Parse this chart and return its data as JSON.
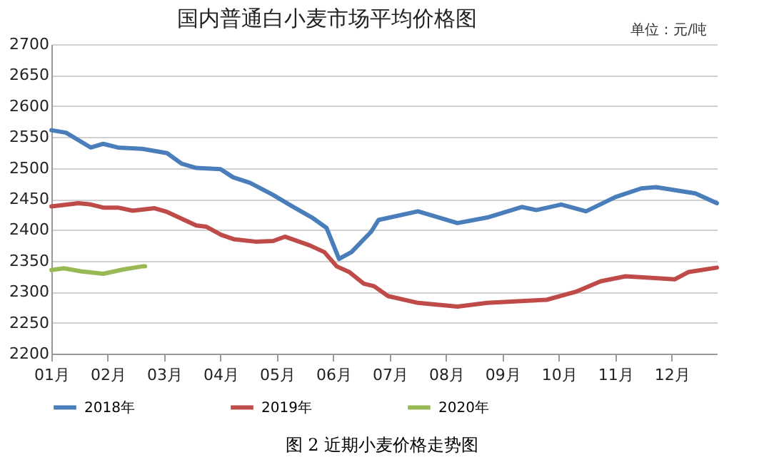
{
  "chart_data": {
    "type": "line",
    "title": "国内普通白小麦市场平均价格图",
    "annotations": [
      "单位：元/吨",
      "图 2 近期小麦价格走势图"
    ],
    "xlim": [
      1,
      12.8
    ],
    "xticks": [
      {
        "value": 1,
        "label": "01月"
      },
      {
        "value": 2,
        "label": "02月"
      },
      {
        "value": 3,
        "label": "03月"
      },
      {
        "value": 4,
        "label": "04月"
      },
      {
        "value": 5,
        "label": "05月"
      },
      {
        "value": 6,
        "label": "06月"
      },
      {
        "value": 7,
        "label": "07月"
      },
      {
        "value": 8,
        "label": "08月"
      },
      {
        "value": 9,
        "label": "09月"
      },
      {
        "value": 10,
        "label": "10月"
      },
      {
        "value": 11,
        "label": "11月"
      },
      {
        "value": 12,
        "label": "12月"
      }
    ],
    "ylim": [
      2200,
      2700
    ],
    "yticks": [
      2200,
      2250,
      2300,
      2350,
      2400,
      2450,
      2500,
      2550,
      2600,
      2650,
      2700
    ],
    "grid": "y",
    "legend": "bottom",
    "marker": "none",
    "line_style": "solid",
    "series": [
      {
        "name": "2018年",
        "color": "#4a7ebb",
        "x": [
          1,
          1.26,
          1.7,
          1.92,
          2.18,
          2.61,
          3.05,
          3.31,
          3.57,
          4.0,
          4.22,
          4.52,
          4.92,
          5.27,
          5.62,
          5.88,
          6.1,
          6.32,
          6.67,
          6.8,
          7.5,
          8.2,
          8.73,
          9.34,
          9.6,
          10.04,
          10.48,
          11.0,
          11.46,
          11.72,
          12.42,
          12.8
        ],
        "values": [
          2561,
          2557,
          2533,
          2539,
          2533,
          2531,
          2524,
          2507,
          2500,
          2498,
          2485,
          2476,
          2457,
          2438,
          2420,
          2403,
          2353,
          2364,
          2397,
          2416,
          2430,
          2411,
          2420,
          2437,
          2432,
          2441,
          2430,
          2453,
          2467,
          2469,
          2459,
          2443
        ]
      },
      {
        "name": "2019年",
        "color": "#be4b48",
        "x": [
          1,
          1.48,
          1.7,
          1.92,
          2.18,
          2.44,
          2.83,
          3.05,
          3.31,
          3.57,
          3.75,
          4.01,
          4.23,
          4.62,
          4.93,
          5.14,
          5.58,
          5.84,
          6.06,
          6.28,
          6.54,
          6.72,
          6.97,
          7.5,
          8.2,
          8.73,
          9.78,
          10.3,
          10.74,
          11.18,
          11.7,
          12.05,
          12.3,
          12.8
        ],
        "values": [
          2438,
          2443,
          2441,
          2436,
          2436,
          2431,
          2435,
          2429,
          2418,
          2407,
          2405,
          2392,
          2385,
          2381,
          2382,
          2389,
          2375,
          2364,
          2341,
          2332,
          2313,
          2309,
          2293,
          2282,
          2276,
          2282,
          2287,
          2300,
          2317,
          2325,
          2322,
          2320,
          2332,
          2339
        ]
      },
      {
        "name": "2020年",
        "color": "#98b954",
        "x": [
          1,
          1.22,
          1.52,
          1.92,
          2.27,
          2.61,
          2.66
        ],
        "values": [
          2335,
          2338,
          2333,
          2329,
          2336,
          2341,
          2341
        ]
      }
    ]
  }
}
